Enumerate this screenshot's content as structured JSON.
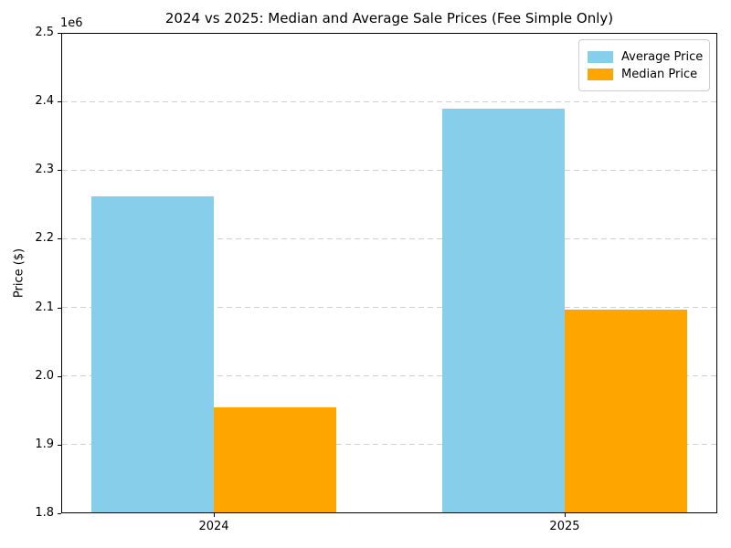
{
  "chart_data": {
    "type": "bar",
    "title": "2024 vs 2025: Median and Average Sale Prices (Fee Simple Only)",
    "xlabel": "",
    "ylabel": "Price ($)",
    "categories": [
      "2024",
      "2025"
    ],
    "series": [
      {
        "name": "Average Price",
        "color": "#87CEEB",
        "values": [
          2262000,
          2389000
        ]
      },
      {
        "name": "Median Price",
        "color": "#FFA500",
        "values": [
          1955000,
          2097000
        ]
      }
    ],
    "ylim": [
      1800000,
      2500000
    ],
    "ytick_step": 100000,
    "ytick_labels": [
      "1.8",
      "1.9",
      "2.0",
      "2.1",
      "2.2",
      "2.3",
      "2.4",
      "2.5"
    ],
    "y_offset_label": "1e6",
    "grid": "horizontal-dashed",
    "gridline_color": "#cfcfcf",
    "legend_position": "upper right",
    "bar_group_width": 0.35
  }
}
